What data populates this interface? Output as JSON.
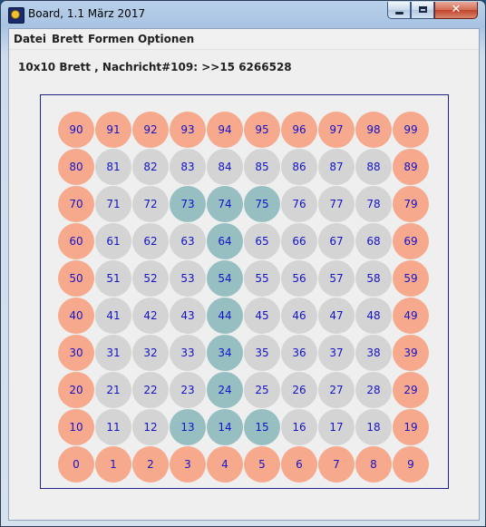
{
  "window": {
    "title": "Board, 1.1 März 2017",
    "icon": "board-app-icon",
    "controls": {
      "minimize": "minimize-icon",
      "maximize": "maximize-icon",
      "close": "close-icon",
      "close_glyph": "✕"
    }
  },
  "menu": [
    {
      "label": "Datei"
    },
    {
      "label": "Brett"
    },
    {
      "label": "Formen"
    },
    {
      "label": "Optionen"
    }
  ],
  "message": "10x10 Brett , Nachricht#109: >>15 6266528",
  "board": {
    "rows": 10,
    "cols": 10,
    "colors": {
      "edge": "#f6a98c",
      "inner": "#d4d4d4",
      "marked": "#97bfc2",
      "number": "#1414c8",
      "frame": "#22238a"
    },
    "marked_cells": [
      13,
      14,
      15,
      24,
      34,
      44,
      54,
      64,
      73,
      74,
      75
    ],
    "cells": [
      [
        "90",
        "91",
        "92",
        "93",
        "94",
        "95",
        "96",
        "97",
        "98",
        "99"
      ],
      [
        "80",
        "81",
        "82",
        "83",
        "84",
        "85",
        "86",
        "87",
        "88",
        "89"
      ],
      [
        "70",
        "71",
        "72",
        "73",
        "74",
        "75",
        "76",
        "77",
        "78",
        "79"
      ],
      [
        "60",
        "61",
        "62",
        "63",
        "64",
        "65",
        "66",
        "67",
        "68",
        "69"
      ],
      [
        "50",
        "51",
        "52",
        "53",
        "54",
        "55",
        "56",
        "57",
        "58",
        "59"
      ],
      [
        "40",
        "41",
        "42",
        "43",
        "44",
        "45",
        "46",
        "47",
        "48",
        "49"
      ],
      [
        "30",
        "31",
        "32",
        "33",
        "34",
        "35",
        "36",
        "37",
        "38",
        "39"
      ],
      [
        "20",
        "21",
        "22",
        "23",
        "24",
        "25",
        "26",
        "27",
        "28",
        "29"
      ],
      [
        "10",
        "11",
        "12",
        "13",
        "14",
        "15",
        "16",
        "17",
        "18",
        "19"
      ],
      [
        "0",
        "1",
        "2",
        "3",
        "4",
        "5",
        "6",
        "7",
        "8",
        "9"
      ]
    ]
  }
}
